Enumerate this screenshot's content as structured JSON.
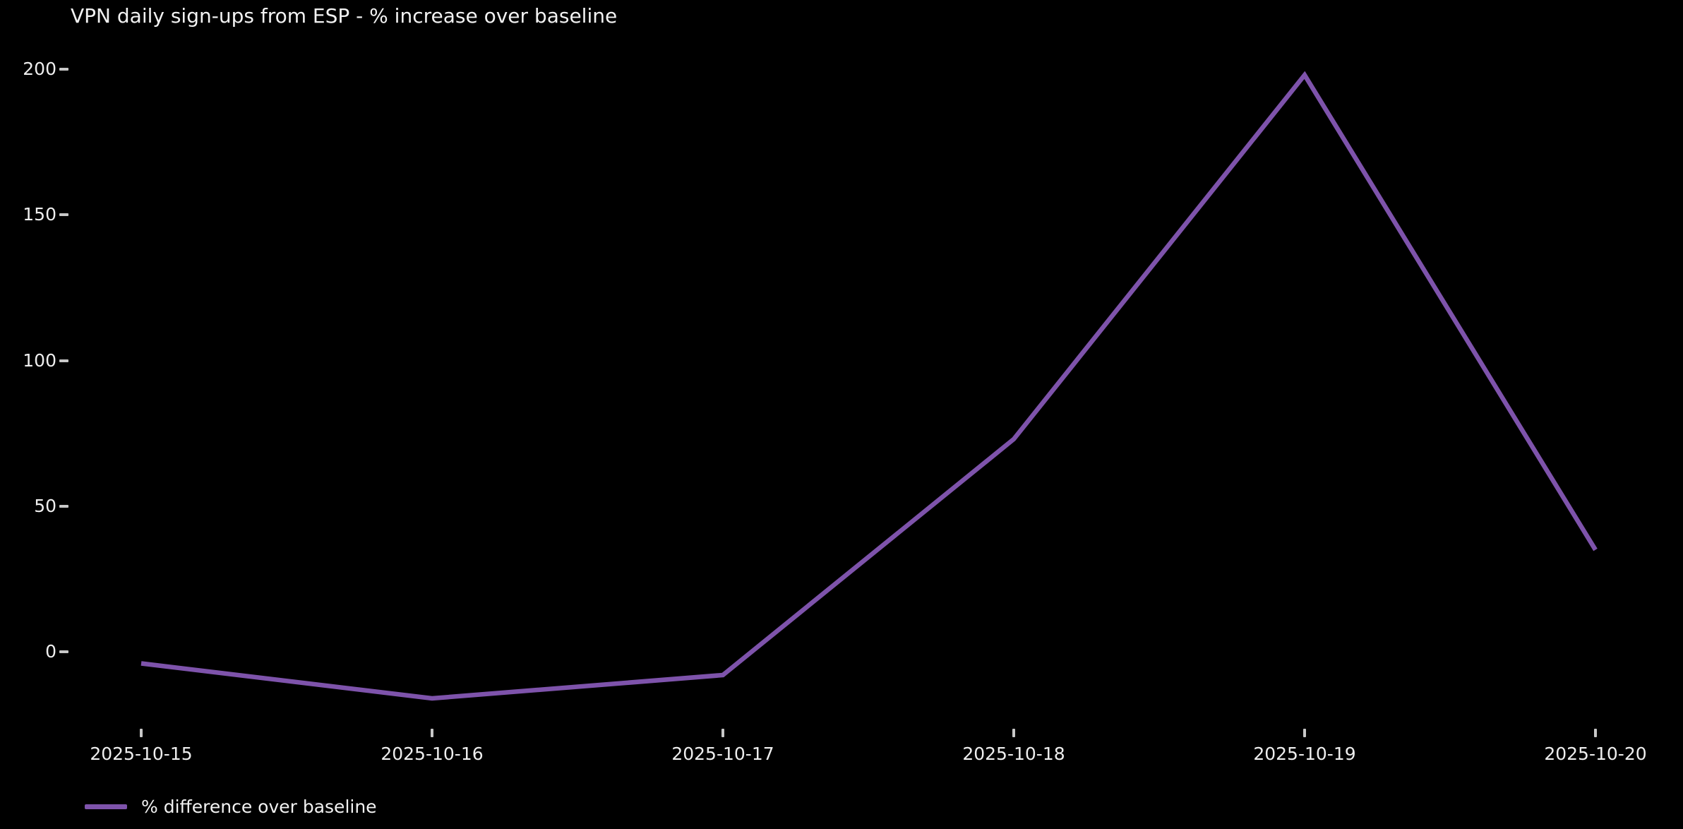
{
  "page": {
    "background": "#000000",
    "text_color": "#ffffff"
  },
  "chart_data": {
    "type": "line",
    "title": "VPN daily sign-ups from ESP - % increase over baseline",
    "categories": [
      "2025-10-15",
      "2025-10-16",
      "2025-10-17",
      "2025-10-18",
      "2025-10-19",
      "2025-10-20"
    ],
    "series": [
      {
        "name": "% difference over baseline",
        "color": "#7e53ab",
        "values": [
          -4,
          -16,
          -8,
          73,
          198,
          35
        ]
      }
    ],
    "xlabel": "",
    "ylabel": "",
    "yticks": [
      0,
      50,
      100,
      150,
      200
    ],
    "ylim": [
      -26,
      224
    ],
    "grid": false,
    "legend": {
      "position": "lower-left",
      "entries": [
        "% difference over baseline"
      ]
    }
  }
}
